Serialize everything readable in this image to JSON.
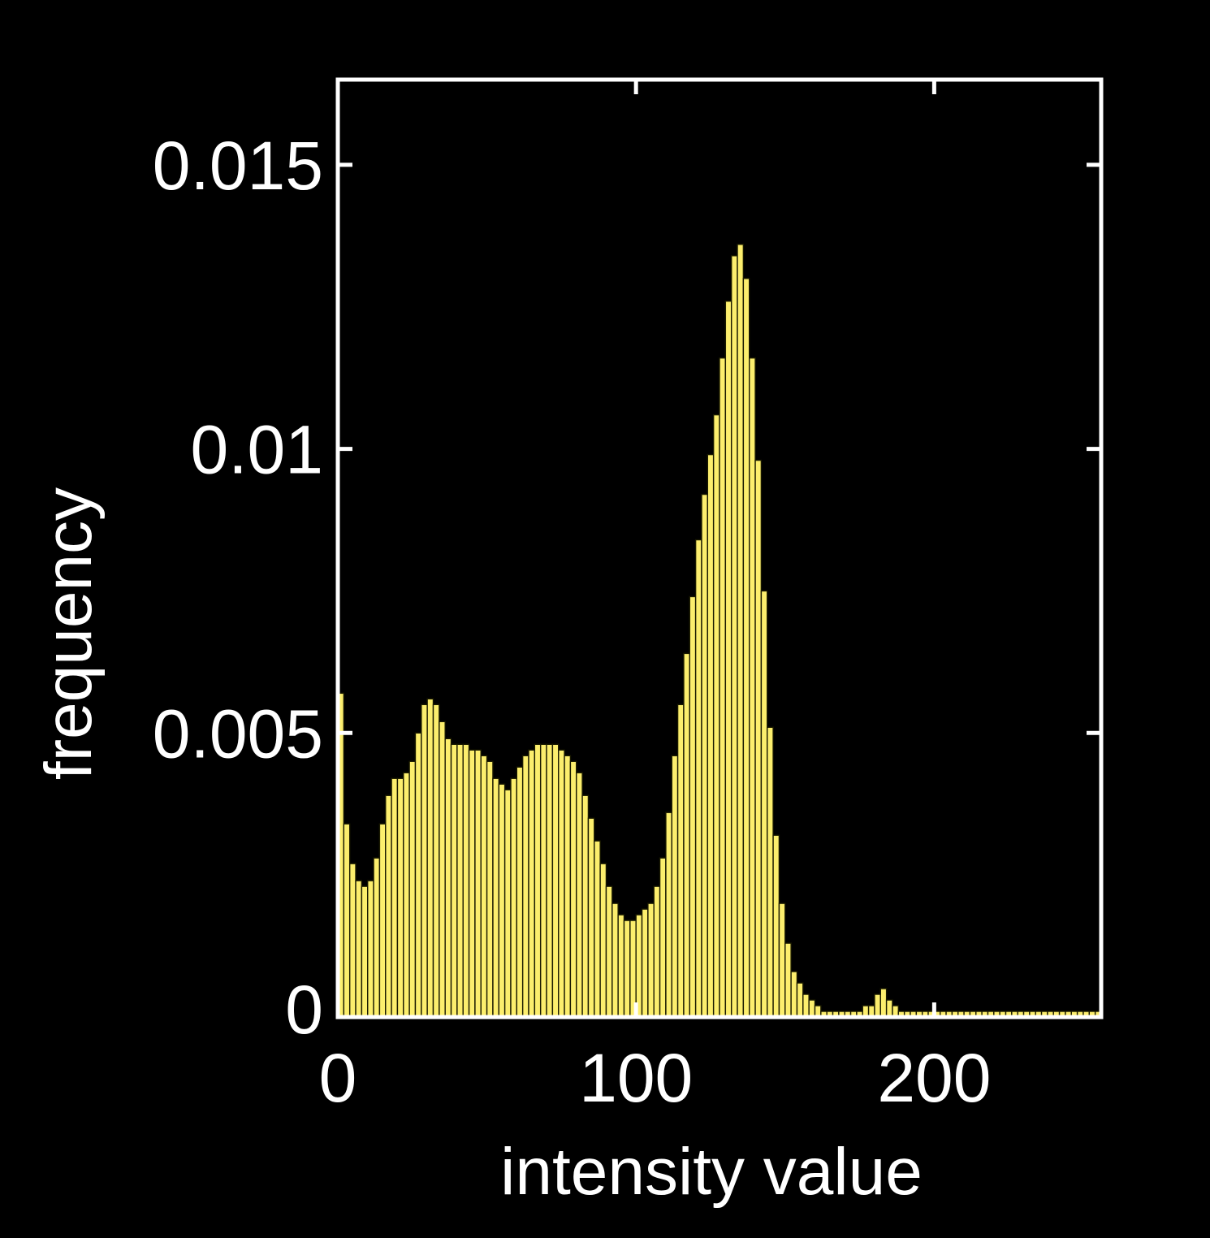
{
  "chart_data": {
    "type": "bar",
    "xlabel": "intensity value",
    "ylabel": "frequency",
    "xlim": [
      0,
      256
    ],
    "ylim": [
      0,
      0.0165
    ],
    "x_ticks": [
      0,
      100,
      200
    ],
    "x_tick_labels": [
      "0",
      "100",
      "200"
    ],
    "y_ticks": [
      0,
      0.005,
      0.01,
      0.015
    ],
    "y_tick_labels": [
      "0",
      "0.005",
      "0.01",
      "0.015"
    ],
    "grid": false,
    "colors": {
      "background": "#000000",
      "bar_fill": "#fcee6d",
      "bar_edge": "#1a1a00",
      "axes": "#ffffff",
      "text": "#ffffff"
    },
    "bin_width": 2,
    "x": [
      0,
      2,
      4,
      6,
      8,
      10,
      12,
      14,
      16,
      18,
      20,
      22,
      24,
      26,
      28,
      30,
      32,
      34,
      36,
      38,
      40,
      42,
      44,
      46,
      48,
      50,
      52,
      54,
      56,
      58,
      60,
      62,
      64,
      66,
      68,
      70,
      72,
      74,
      76,
      78,
      80,
      82,
      84,
      86,
      88,
      90,
      92,
      94,
      96,
      98,
      100,
      102,
      104,
      106,
      108,
      110,
      112,
      114,
      116,
      118,
      120,
      122,
      124,
      126,
      128,
      130,
      132,
      134,
      136,
      138,
      140,
      142,
      144,
      146,
      148,
      150,
      152,
      154,
      156,
      158,
      160,
      162,
      164,
      166,
      168,
      170,
      172,
      174,
      176,
      178,
      180,
      182,
      184,
      186,
      188,
      190,
      192,
      194,
      196,
      198,
      200,
      202,
      204,
      206,
      208,
      210,
      212,
      214,
      216,
      218,
      220,
      222,
      224,
      226,
      228,
      230,
      232,
      234,
      236,
      238,
      240,
      242,
      244,
      246,
      248,
      250,
      252,
      254
    ],
    "values": [
      0.0057,
      0.0034,
      0.0027,
      0.0024,
      0.0023,
      0.0024,
      0.0028,
      0.0034,
      0.0039,
      0.0042,
      0.0042,
      0.0043,
      0.0045,
      0.005,
      0.0055,
      0.0056,
      0.0055,
      0.0052,
      0.0049,
      0.0048,
      0.0048,
      0.0048,
      0.0047,
      0.0047,
      0.0046,
      0.0045,
      0.0042,
      0.0041,
      0.004,
      0.0042,
      0.0044,
      0.0046,
      0.0047,
      0.0048,
      0.0048,
      0.0048,
      0.0048,
      0.0047,
      0.0046,
      0.0045,
      0.0043,
      0.0039,
      0.0035,
      0.0031,
      0.0027,
      0.0023,
      0.002,
      0.0018,
      0.0017,
      0.0017,
      0.0018,
      0.0019,
      0.002,
      0.0023,
      0.0028,
      0.0036,
      0.0046,
      0.0055,
      0.0064,
      0.0074,
      0.0084,
      0.0092,
      0.0099,
      0.0106,
      0.0116,
      0.0126,
      0.0134,
      0.0136,
      0.013,
      0.0116,
      0.0098,
      0.0075,
      0.0051,
      0.0032,
      0.002,
      0.0013,
      0.0008,
      0.0006,
      0.0004,
      0.0003,
      0.0002,
      0.0001,
      0.0001,
      0.0001,
      0.0001,
      0.0001,
      0.0001,
      0.0001,
      0.0002,
      0.0002,
      0.0004,
      0.0005,
      0.0003,
      0.0002,
      0.0001,
      0.0001,
      0.0001,
      0.0001,
      0.0001,
      0.0001,
      0.0001,
      0.0001,
      0.0001,
      0.0001,
      0.0001,
      0.0001,
      0.0001,
      0.0001,
      0.0001,
      0.0001,
      0.0001,
      0.0001,
      0.0001,
      0.0001,
      0.0001,
      0.0001,
      0.0001,
      0.0001,
      0.0001,
      0.0001,
      0.0001,
      0.0001,
      0.0001,
      0.0001,
      0.0001,
      0.0001,
      0.0001,
      0.0001
    ]
  }
}
